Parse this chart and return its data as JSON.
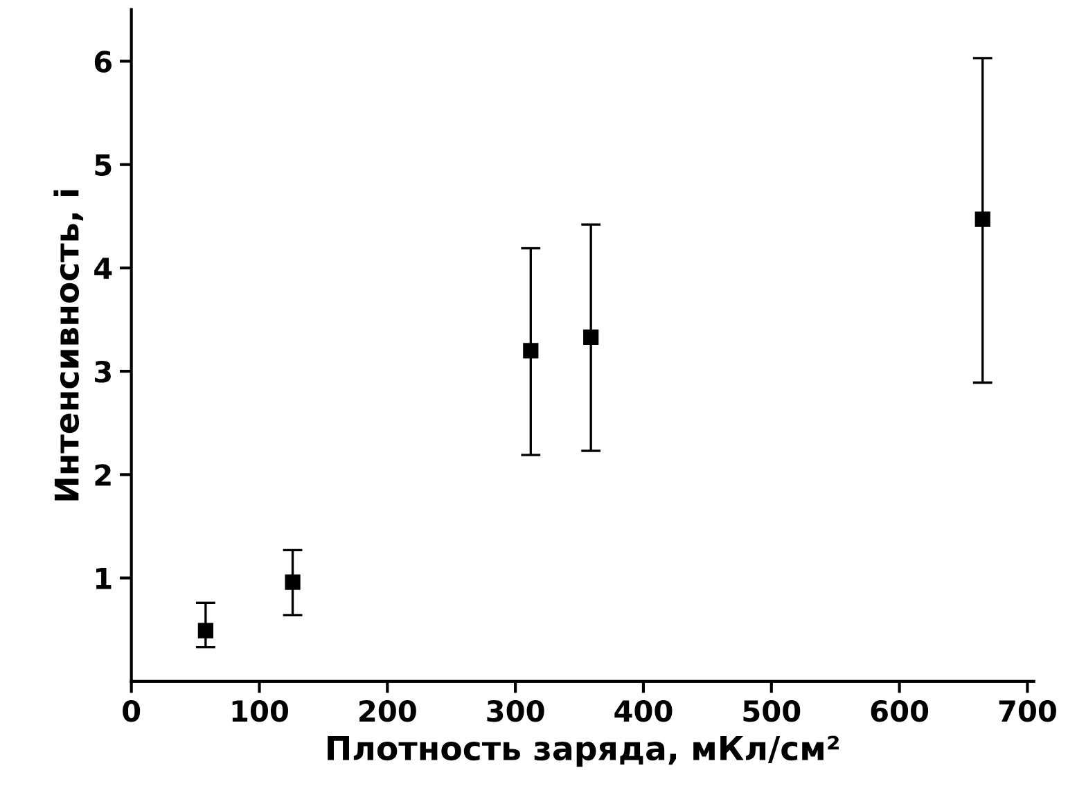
{
  "chart_data": {
    "type": "scatter",
    "xlabel": "Плотность заряда, мКл/см²",
    "ylabel": "Интенсивность, i",
    "x": [
      58,
      126,
      312,
      359,
      665
    ],
    "series": [
      {
        "color": "#000000",
        "values": [
          0.49,
          0.96,
          3.2,
          3.33,
          4.47
        ],
        "errors": [
          [
            0.33,
            0.76
          ],
          [
            0.64,
            1.27
          ],
          [
            2.19,
            4.19
          ],
          [
            2.23,
            4.42
          ],
          [
            2.89,
            6.03
          ]
        ]
      }
    ],
    "xlim": [
      0,
      705
    ],
    "ylim": [
      0,
      6.5
    ],
    "xticks": [
      0,
      100,
      200,
      300,
      400,
      500,
      600,
      700
    ],
    "yticks": [
      1,
      2,
      3,
      4,
      5,
      6
    ],
    "marker": "square",
    "grid": false,
    "legend": false
  }
}
